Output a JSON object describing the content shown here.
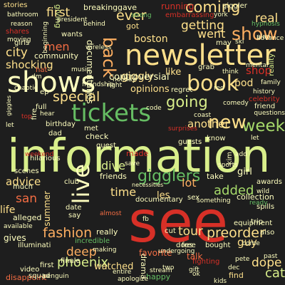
{
  "colors": {
    "background": "#1e1e1e",
    "red": "#d73027",
    "orange": "#f46d43",
    "tan": "#fdae61",
    "cream": "#fee08b",
    "pale": "#ffffbf",
    "lime": "#d9ef8b",
    "green": "#a6d96a",
    "mid_green": "#66bd63",
    "dark_green": "#1a9850"
  },
  "words": [
    "information",
    "see",
    "newsletter",
    "tickets",
    "shows",
    "live",
    "book",
    "first",
    "show",
    "coming",
    "ever",
    "week",
    "back",
    "gigglers",
    "going",
    "special",
    "new",
    "added",
    "preorder",
    "fashion",
    "tour",
    "phoenix",
    "city",
    "men",
    "real",
    "san",
    "time",
    "lot",
    "girl",
    "cat",
    "guy",
    "life",
    "dope",
    "shop",
    "giggly",
    "like",
    "another",
    "advice",
    "dive",
    "watched",
    "favorite",
    "deep",
    "pod",
    "boston",
    "got",
    "went",
    "getting",
    "stories",
    "bathroom",
    "breaking",
    "gave",
    "running",
    "giggler",
    "embarrassing",
    "strong",
    "reason",
    "shares",
    "moving",
    "wants",
    "community",
    "shocking",
    "hat",
    "documentaries",
    "controversial",
    "opinions",
    "friendship",
    "coast",
    "friend",
    "reality",
    "history",
    "celebrity",
    "plan",
    "hypnosis",
    "happy",
    "entire",
    "apologize",
    "drama",
    "undergoing",
    "fighting",
    "find",
    "past",
    "disappoint",
    "squad",
    "penguin",
    "gives",
    "available",
    "alleged",
    "finale",
    "incredible",
    "making",
    "really",
    "summer",
    "friends",
    "collection",
    "awards",
    "documentary",
    "something",
    "necessities",
    "check",
    "made",
    "surprises",
    "guests",
    "birthday",
    "dad",
    "weekend",
    "much",
    "scenes",
    "full",
    "hear",
    "hilarious",
    "illuminati",
    "almost",
    "first",
    "video",
    "take",
    "talk",
    "also",
    "come",
    "does",
    "equipment",
    "cut",
    "trip",
    "spills",
    "free",
    "bought",
    "club",
    "girls",
    "york",
    "let",
    "kim",
    "know",
    "grab",
    "think",
    "code",
    "regret",
    "met",
    "guest",
    "say",
    "date",
    "sex",
    "les",
    "ready",
    "wild",
    "giving",
    "may",
    "ski",
    "behind",
    "ep",
    "holiday",
    "president",
    "music",
    "mental",
    "right",
    "save",
    "fb",
    "dec",
    "chaotic",
    "pete",
    "stream",
    "ok",
    "kids",
    "two",
    "advance",
    "gift",
    "wireless",
    "fire",
    "beginning",
    "let",
    "top",
    "questions",
    "giggles",
    "family",
    "red",
    "comedy",
    "sports",
    "dm",
    "add",
    "late",
    "go",
    "season",
    "need",
    "pop"
  ]
}
